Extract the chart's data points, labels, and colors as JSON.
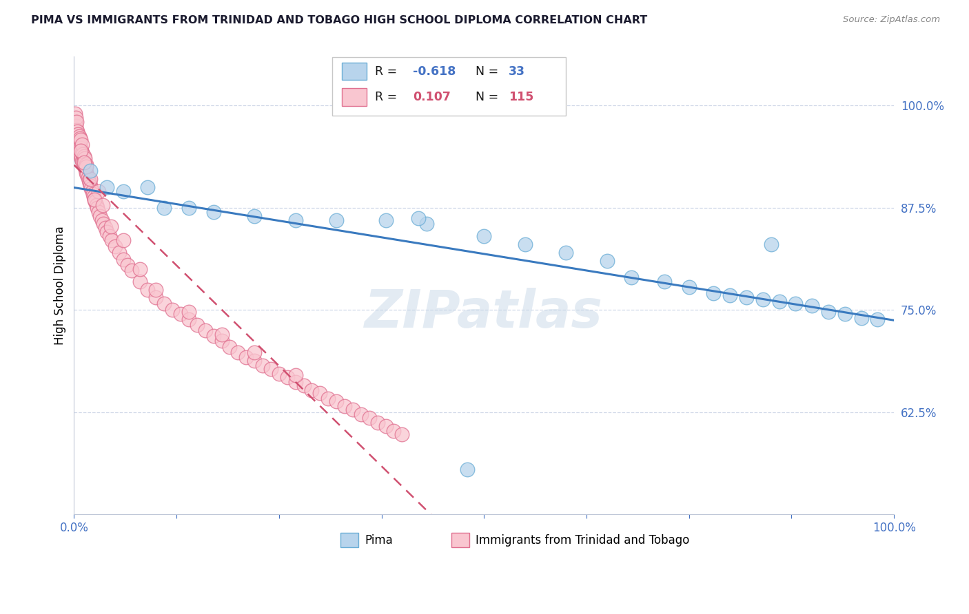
{
  "title": "PIMA VS IMMIGRANTS FROM TRINIDAD AND TOBAGO HIGH SCHOOL DIPLOMA CORRELATION CHART",
  "source": "Source: ZipAtlas.com",
  "ylabel": "High School Diploma",
  "xlim": [
    0.0,
    1.0
  ],
  "ylim": [
    0.5,
    1.06
  ],
  "yticks": [
    0.625,
    0.75,
    0.875,
    1.0
  ],
  "ytick_labels": [
    "62.5%",
    "75.0%",
    "87.5%",
    "100.0%"
  ],
  "pima_color": "#b8d4ec",
  "pima_edge_color": "#6baed6",
  "tt_color": "#f9c6d0",
  "tt_edge_color": "#e07090",
  "pima_line_color": "#3a7abf",
  "tt_line_color": "#d05070",
  "watermark_color": "#c8d8e8",
  "pima_x": [
    0.02,
    0.04,
    0.06,
    0.09,
    0.11,
    0.14,
    0.17,
    0.22,
    0.27,
    0.32,
    0.38,
    0.43,
    0.5,
    0.55,
    0.6,
    0.65,
    0.68,
    0.72,
    0.75,
    0.78,
    0.8,
    0.82,
    0.84,
    0.86,
    0.88,
    0.9,
    0.92,
    0.94,
    0.96,
    0.98,
    0.48,
    0.85,
    0.42
  ],
  "pima_y": [
    0.92,
    0.9,
    0.895,
    0.9,
    0.875,
    0.875,
    0.87,
    0.865,
    0.86,
    0.86,
    0.86,
    0.855,
    0.84,
    0.83,
    0.82,
    0.81,
    0.79,
    0.785,
    0.778,
    0.77,
    0.768,
    0.765,
    0.763,
    0.76,
    0.758,
    0.755,
    0.748,
    0.745,
    0.74,
    0.738,
    0.555,
    0.83,
    0.862
  ],
  "tt_x": [
    0.001,
    0.001,
    0.001,
    0.001,
    0.002,
    0.002,
    0.002,
    0.002,
    0.003,
    0.003,
    0.003,
    0.003,
    0.004,
    0.004,
    0.004,
    0.005,
    0.005,
    0.005,
    0.006,
    0.006,
    0.006,
    0.007,
    0.007,
    0.007,
    0.008,
    0.008,
    0.008,
    0.009,
    0.009,
    0.01,
    0.01,
    0.01,
    0.011,
    0.011,
    0.012,
    0.012,
    0.013,
    0.013,
    0.014,
    0.015,
    0.015,
    0.016,
    0.017,
    0.018,
    0.019,
    0.02,
    0.021,
    0.022,
    0.023,
    0.024,
    0.025,
    0.026,
    0.027,
    0.028,
    0.03,
    0.032,
    0.034,
    0.036,
    0.038,
    0.04,
    0.043,
    0.046,
    0.05,
    0.055,
    0.06,
    0.065,
    0.07,
    0.08,
    0.09,
    0.1,
    0.11,
    0.12,
    0.13,
    0.14,
    0.15,
    0.16,
    0.17,
    0.18,
    0.19,
    0.2,
    0.21,
    0.22,
    0.23,
    0.24,
    0.25,
    0.26,
    0.27,
    0.28,
    0.29,
    0.3,
    0.31,
    0.32,
    0.33,
    0.34,
    0.35,
    0.36,
    0.37,
    0.38,
    0.39,
    0.4,
    0.02,
    0.03,
    0.015,
    0.025,
    0.008,
    0.012,
    0.035,
    0.045,
    0.06,
    0.08,
    0.1,
    0.14,
    0.18,
    0.22,
    0.27
  ],
  "tt_y": [
    0.96,
    0.97,
    0.98,
    0.99,
    0.955,
    0.965,
    0.975,
    0.985,
    0.95,
    0.96,
    0.97,
    0.98,
    0.948,
    0.958,
    0.968,
    0.945,
    0.955,
    0.965,
    0.942,
    0.952,
    0.962,
    0.94,
    0.95,
    0.96,
    0.938,
    0.948,
    0.958,
    0.935,
    0.945,
    0.932,
    0.942,
    0.952,
    0.93,
    0.94,
    0.928,
    0.938,
    0.925,
    0.935,
    0.922,
    0.918,
    0.928,
    0.915,
    0.912,
    0.908,
    0.905,
    0.902,
    0.898,
    0.895,
    0.892,
    0.888,
    0.885,
    0.882,
    0.878,
    0.875,
    0.87,
    0.865,
    0.86,
    0.855,
    0.85,
    0.845,
    0.84,
    0.835,
    0.828,
    0.82,
    0.812,
    0.805,
    0.798,
    0.785,
    0.775,
    0.765,
    0.758,
    0.75,
    0.745,
    0.738,
    0.732,
    0.725,
    0.718,
    0.712,
    0.705,
    0.698,
    0.692,
    0.688,
    0.682,
    0.678,
    0.672,
    0.668,
    0.662,
    0.658,
    0.652,
    0.648,
    0.642,
    0.638,
    0.632,
    0.628,
    0.622,
    0.618,
    0.612,
    0.608,
    0.602,
    0.598,
    0.91,
    0.895,
    0.925,
    0.885,
    0.945,
    0.93,
    0.878,
    0.852,
    0.835,
    0.8,
    0.775,
    0.748,
    0.72,
    0.698,
    0.67
  ]
}
